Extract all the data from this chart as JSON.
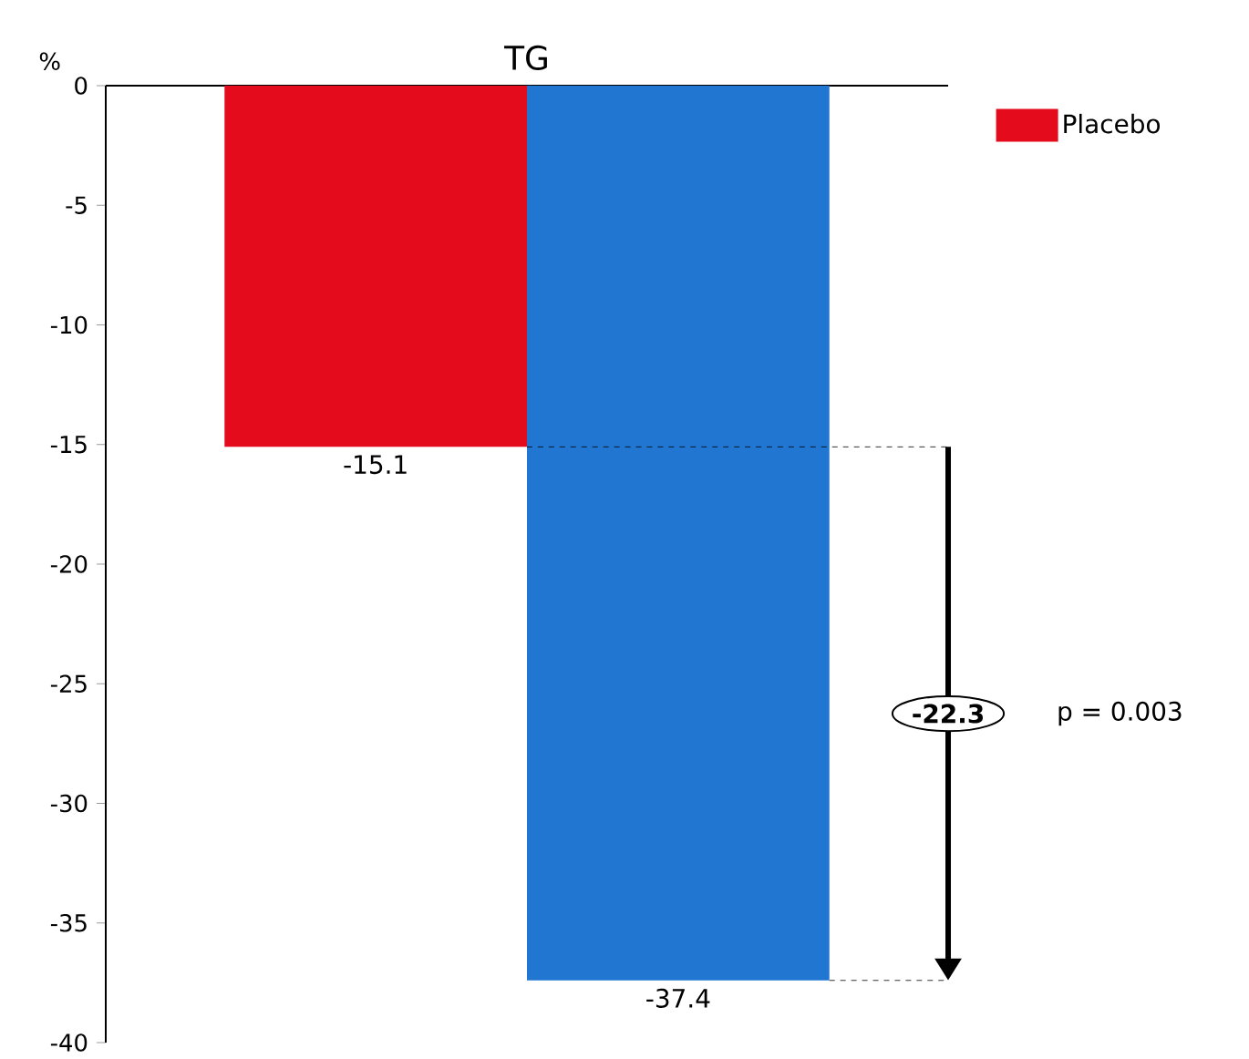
{
  "chart_data": {
    "type": "bar",
    "title": "TG",
    "ylabel": "%",
    "categories": [
      null
    ],
    "series": [
      {
        "name": "Placebo",
        "color": "#e30b1c",
        "values": [
          -15.1
        ]
      },
      {
        "color": "#2176d2",
        "values": [
          -37.4
        ]
      }
    ],
    "ylim": [
      -40,
      0
    ],
    "yticks": [
      0,
      -5,
      -10,
      -15,
      -20,
      -25,
      -30,
      -35,
      -40
    ],
    "data_labels": true,
    "legend": "top right",
    "grid": false,
    "ref_lines": [
      {
        "axis": "y",
        "value": -15.1,
        "color": "#000000",
        "line_style": "dashed"
      },
      {
        "axis": "y",
        "value": -37.4,
        "color": "#000000",
        "line_style": "dashed"
      }
    ],
    "annotations": [
      "-22.3",
      "p = 0.003"
    ]
  }
}
